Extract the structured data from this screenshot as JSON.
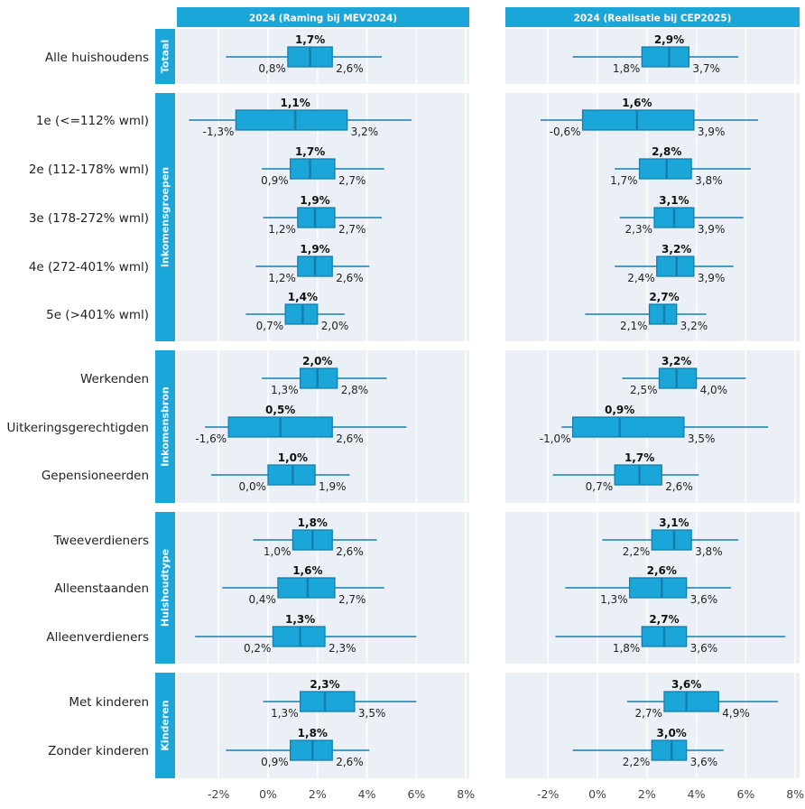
{
  "chart_data": {
    "type": "boxplot",
    "panels": [
      "2024 (Raming bij MEV2024)",
      "2024 (Realisatie bij CEP2025)"
    ],
    "x_ticks": [
      "-2%",
      "0%",
      "2%",
      "4%",
      "6%",
      "8%"
    ],
    "x_tick_values": [
      -2,
      0,
      2,
      4,
      6,
      8
    ],
    "xlim": [
      -3.7,
      8.2
    ],
    "grid": true,
    "colors": {
      "box": "#1ba6d9",
      "box_border": "#147fae",
      "strip": "#1ba6d9",
      "panel_bg": "#ebf0f7",
      "grid": "#ffffff"
    },
    "groups": [
      {
        "name": "Totaal",
        "rows": [
          {
            "label": "Alle huishoudens",
            "values": [
              {
                "min": -1.7,
                "q1": 0.8,
                "median": 1.7,
                "q3": 2.6,
                "max": 4.6,
                "q1_label": "0,8%",
                "median_label": "1,7%",
                "q3_label": "2,6%"
              },
              {
                "min": -1.0,
                "q1": 1.8,
                "median": 2.9,
                "q3": 3.7,
                "max": 5.7,
                "q1_label": "1,8%",
                "median_label": "2,9%",
                "q3_label": "3,7%"
              }
            ]
          }
        ]
      },
      {
        "name": "Inkomensgroepen",
        "rows": [
          {
            "label": "1e (<=112% wml)",
            "values": [
              {
                "min": -3.2,
                "q1": -1.3,
                "median": 1.1,
                "q3": 3.2,
                "max": 5.8,
                "q1_label": "-1,3%",
                "median_label": "1,1%",
                "q3_label": "3,2%"
              },
              {
                "min": -2.3,
                "q1": -0.6,
                "median": 1.6,
                "q3": 3.9,
                "max": 6.5,
                "q1_label": "-0,6%",
                "median_label": "1,6%",
                "q3_label": "3,9%"
              }
            ]
          },
          {
            "label": "2e (112-178% wml)",
            "values": [
              {
                "min": -0.25,
                "q1": 0.9,
                "median": 1.7,
                "q3": 2.7,
                "max": 4.7,
                "q1_label": "0,9%",
                "median_label": "1,7%",
                "q3_label": "2,7%"
              },
              {
                "min": 0.7,
                "q1": 1.7,
                "median": 2.8,
                "q3": 3.8,
                "max": 6.2,
                "q1_label": "1,7%",
                "median_label": "2,8%",
                "q3_label": "3,8%"
              }
            ]
          },
          {
            "label": "3e (178-272% wml)",
            "values": [
              {
                "min": -0.2,
                "q1": 1.2,
                "median": 1.9,
                "q3": 2.7,
                "max": 4.6,
                "q1_label": "1,2%",
                "median_label": "1,9%",
                "q3_label": "2,7%"
              },
              {
                "min": 0.9,
                "q1": 2.3,
                "median": 3.1,
                "q3": 3.9,
                "max": 5.9,
                "q1_label": "2,3%",
                "median_label": "3,1%",
                "q3_label": "3,9%"
              }
            ]
          },
          {
            "label": "4e (272-401% wml)",
            "values": [
              {
                "min": -0.5,
                "q1": 1.2,
                "median": 1.9,
                "q3": 2.6,
                "max": 4.1,
                "q1_label": "1,2%",
                "median_label": "1,9%",
                "q3_label": "2,6%"
              },
              {
                "min": 0.7,
                "q1": 2.4,
                "median": 3.2,
                "q3": 3.9,
                "max": 5.5,
                "q1_label": "2,4%",
                "median_label": "3,2%",
                "q3_label": "3,9%"
              }
            ]
          },
          {
            "label": "5e (>401% wml)",
            "values": [
              {
                "min": -0.9,
                "q1": 0.7,
                "median": 1.4,
                "q3": 2.0,
                "max": 3.1,
                "q1_label": "0,7%",
                "median_label": "1,4%",
                "q3_label": "2,0%"
              },
              {
                "min": -0.5,
                "q1": 2.1,
                "median": 2.7,
                "q3": 3.2,
                "max": 4.4,
                "q1_label": "2,1%",
                "median_label": "2,7%",
                "q3_label": "3,2%"
              }
            ]
          }
        ]
      },
      {
        "name": "Inkomensbron",
        "rows": [
          {
            "label": "Werkenden",
            "values": [
              {
                "min": -0.25,
                "q1": 1.3,
                "median": 2.0,
                "q3": 2.8,
                "max": 4.8,
                "q1_label": "1,3%",
                "median_label": "2,0%",
                "q3_label": "2,8%"
              },
              {
                "min": 1.0,
                "q1": 2.5,
                "median": 3.2,
                "q3": 4.0,
                "max": 6.0,
                "q1_label": "2,5%",
                "median_label": "3,2%",
                "q3_label": "4,0%"
              }
            ]
          },
          {
            "label": "Uitkeringsgerechtigden",
            "values": [
              {
                "min": -2.55,
                "q1": -1.6,
                "median": 0.5,
                "q3": 2.6,
                "max": 5.6,
                "q1_label": "-1,6%",
                "median_label": "0,5%",
                "q3_label": "2,6%"
              },
              {
                "min": -1.45,
                "q1": -1.0,
                "median": 0.9,
                "q3": 3.5,
                "max": 6.9,
                "q1_label": "-1,0%",
                "median_label": "0,9%",
                "q3_label": "3,5%"
              }
            ]
          },
          {
            "label": "Gepensioneerden",
            "values": [
              {
                "min": -2.3,
                "q1": 0.0,
                "median": 1.0,
                "q3": 1.9,
                "max": 3.3,
                "q1_label": "0,0%",
                "median_label": "1,0%",
                "q3_label": "1,9%"
              },
              {
                "min": -1.8,
                "q1": 0.7,
                "median": 1.7,
                "q3": 2.6,
                "max": 4.1,
                "q1_label": "0,7%",
                "median_label": "1,7%",
                "q3_label": "2,6%"
              }
            ]
          }
        ]
      },
      {
        "name": "Huishoudtype",
        "rows": [
          {
            "label": "Tweeverdieners",
            "values": [
              {
                "min": -0.6,
                "q1": 1.0,
                "median": 1.8,
                "q3": 2.6,
                "max": 4.4,
                "q1_label": "1,0%",
                "median_label": "1,8%",
                "q3_label": "2,6%"
              },
              {
                "min": 0.2,
                "q1": 2.2,
                "median": 3.1,
                "q3": 3.8,
                "max": 5.7,
                "q1_label": "2,2%",
                "median_label": "3,1%",
                "q3_label": "3,8%"
              }
            ]
          },
          {
            "label": "Alleenstaanden",
            "values": [
              {
                "min": -1.85,
                "q1": 0.4,
                "median": 1.6,
                "q3": 2.7,
                "max": 4.7,
                "q1_label": "0,4%",
                "median_label": "1,6%",
                "q3_label": "2,7%"
              },
              {
                "min": -1.3,
                "q1": 1.3,
                "median": 2.6,
                "q3": 3.6,
                "max": 5.4,
                "q1_label": "1,3%",
                "median_label": "2,6%",
                "q3_label": "3,6%"
              }
            ]
          },
          {
            "label": "Alleenverdieners",
            "values": [
              {
                "min": -2.95,
                "q1": 0.2,
                "median": 1.3,
                "q3": 2.3,
                "max": 6.0,
                "q1_label": "0,2%",
                "median_label": "1,3%",
                "q3_label": "2,3%"
              },
              {
                "min": -1.7,
                "q1": 1.8,
                "median": 2.7,
                "q3": 3.6,
                "max": 7.6,
                "q1_label": "1,8%",
                "median_label": "2,7%",
                "q3_label": "3,6%"
              }
            ]
          }
        ]
      },
      {
        "name": "Kinderen",
        "rows": [
          {
            "label": "Met kinderen",
            "values": [
              {
                "min": -0.2,
                "q1": 1.3,
                "median": 2.3,
                "q3": 3.5,
                "max": 6.0,
                "q1_label": "1,3%",
                "median_label": "2,3%",
                "q3_label": "3,5%"
              },
              {
                "min": 1.2,
                "q1": 2.7,
                "median": 3.6,
                "q3": 4.9,
                "max": 7.3,
                "q1_label": "2,7%",
                "median_label": "3,6%",
                "q3_label": "4,9%"
              }
            ]
          },
          {
            "label": "Zonder kinderen",
            "values": [
              {
                "min": -1.7,
                "q1": 0.9,
                "median": 1.8,
                "q3": 2.6,
                "max": 4.1,
                "q1_label": "0,9%",
                "median_label": "1,8%",
                "q3_label": "2,6%"
              },
              {
                "min": -1.0,
                "q1": 2.2,
                "median": 3.0,
                "q3": 3.6,
                "max": 5.1,
                "q1_label": "2,2%",
                "median_label": "3,0%",
                "q3_label": "3,6%"
              }
            ]
          }
        ]
      }
    ]
  }
}
